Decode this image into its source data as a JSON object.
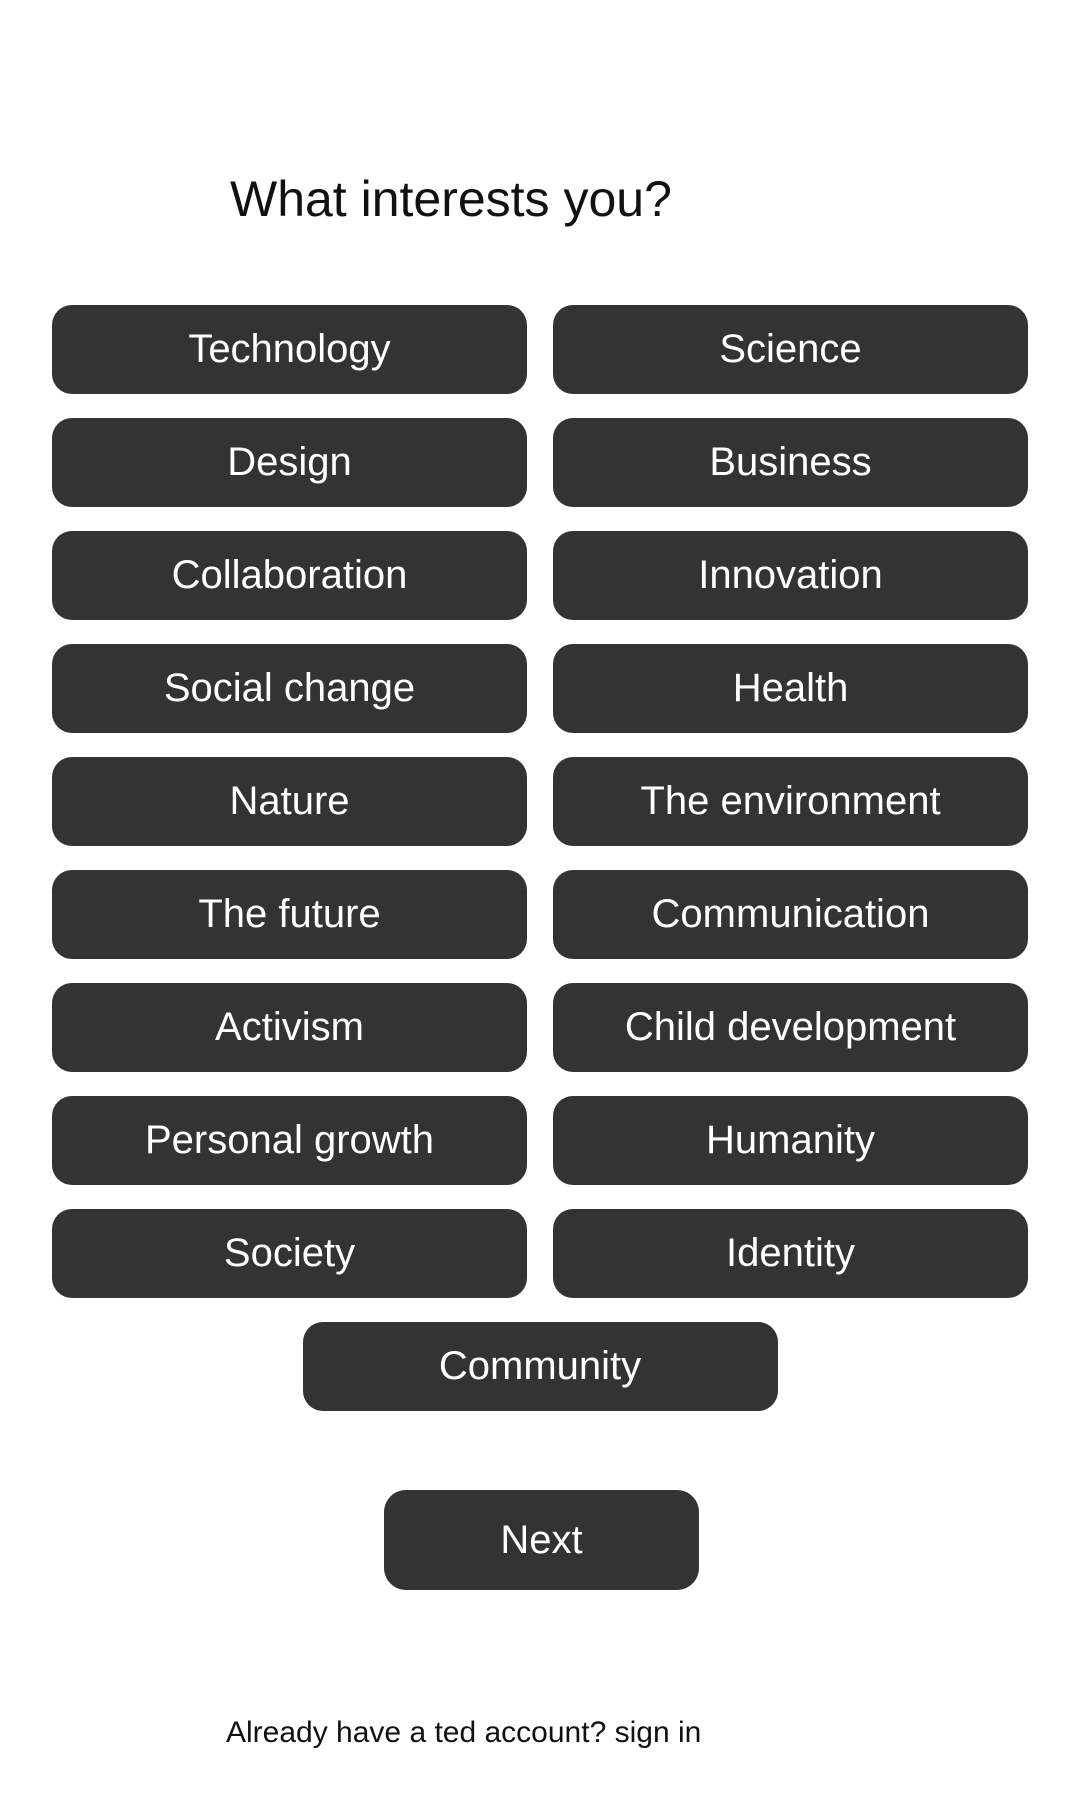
{
  "header": {
    "title": "What interests you?"
  },
  "topics": [
    {
      "label": "Technology"
    },
    {
      "label": "Science"
    },
    {
      "label": "Design"
    },
    {
      "label": "Business"
    },
    {
      "label": "Collaboration"
    },
    {
      "label": "Innovation"
    },
    {
      "label": "Social change"
    },
    {
      "label": "Health"
    },
    {
      "label": "Nature"
    },
    {
      "label": "The environment"
    },
    {
      "label": "The future"
    },
    {
      "label": "Communication"
    },
    {
      "label": "Activism"
    },
    {
      "label": "Child development"
    },
    {
      "label": "Personal growth"
    },
    {
      "label": "Humanity"
    },
    {
      "label": "Society"
    },
    {
      "label": "Identity"
    },
    {
      "label": "Community"
    }
  ],
  "actions": {
    "next_label": "Next"
  },
  "footer": {
    "signin_text": "Already have a ted account? sign in"
  },
  "colors": {
    "button_bg": "#333333",
    "button_text": "#ffffff",
    "page_bg": "#ffffff",
    "text": "#111111"
  }
}
